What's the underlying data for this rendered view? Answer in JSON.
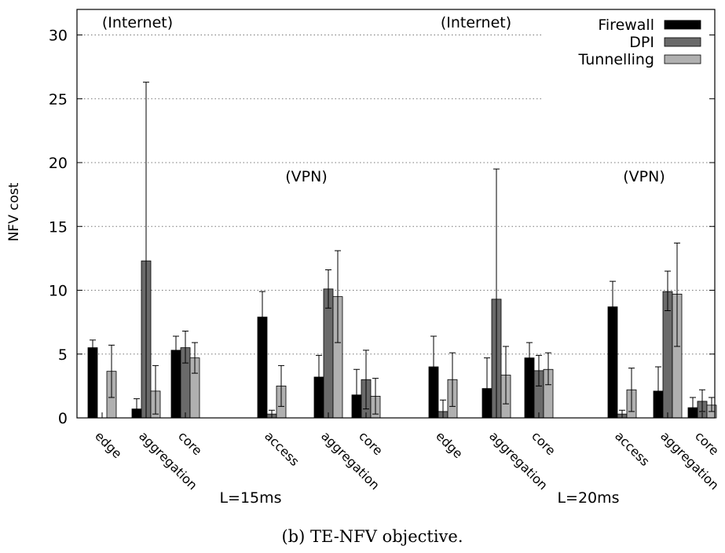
{
  "chart_data": {
    "type": "bar",
    "ylabel": "NFV cost",
    "ylim": [
      0,
      32
    ],
    "yticks": [
      0,
      5,
      10,
      15,
      20,
      25,
      30
    ],
    "grid": "horizontal dotted",
    "legend_position": "top-right",
    "series": [
      {
        "name": "Firewall",
        "color": "#000000"
      },
      {
        "name": "DPI",
        "color": "#6a6a6a"
      },
      {
        "name": "Tunnelling",
        "color": "#b0b0b0"
      }
    ],
    "groups": [
      {
        "panel": "L=15ms",
        "scenario": "(Internet)",
        "category": "edge",
        "values": [
          5.5,
          0,
          3.65
        ],
        "errors": [
          [
            5.0,
            6.1
          ],
          [
            0,
            0
          ],
          [
            1.6,
            5.7
          ]
        ]
      },
      {
        "panel": "L=15ms",
        "scenario": "(Internet)",
        "category": "aggregation",
        "values": [
          0.7,
          12.3,
          2.1
        ],
        "errors": [
          [
            0.1,
            1.5
          ],
          [
            0,
            26.3
          ],
          [
            0.3,
            4.1
          ]
        ]
      },
      {
        "panel": "L=15ms",
        "scenario": "(Internet)",
        "category": "core",
        "values": [
          5.3,
          5.5,
          4.7
        ],
        "errors": [
          [
            4.3,
            6.4
          ],
          [
            4.3,
            6.8
          ],
          [
            3.5,
            5.9
          ]
        ]
      },
      {
        "panel": "L=15ms",
        "scenario": "(VPN)",
        "category": "access",
        "values": [
          7.9,
          0.3,
          2.5
        ],
        "errors": [
          [
            5.9,
            9.9
          ],
          [
            0,
            0.6
          ],
          [
            0.9,
            4.1
          ]
        ]
      },
      {
        "panel": "L=15ms",
        "scenario": "(VPN)",
        "category": "aggregation",
        "values": [
          3.2,
          10.1,
          9.5
        ],
        "errors": [
          [
            1.5,
            4.9
          ],
          [
            8.6,
            11.6
          ],
          [
            5.9,
            13.1
          ]
        ]
      },
      {
        "panel": "L=15ms",
        "scenario": "(VPN)",
        "category": "core",
        "values": [
          1.8,
          3.0,
          1.7
        ],
        "errors": [
          [
            0,
            3.8
          ],
          [
            0.7,
            5.3
          ],
          [
            0.3,
            3.1
          ]
        ]
      },
      {
        "panel": "L=20ms",
        "scenario": "(Internet)",
        "category": "edge",
        "values": [
          4.0,
          0.5,
          3.0
        ],
        "errors": [
          [
            1.7,
            6.4
          ],
          [
            0,
            1.4
          ],
          [
            0.9,
            5.1
          ]
        ]
      },
      {
        "panel": "L=20ms",
        "scenario": "(Internet)",
        "category": "aggregation",
        "values": [
          2.3,
          9.3,
          3.35
        ],
        "errors": [
          [
            0,
            4.7
          ],
          [
            0,
            19.5
          ],
          [
            1.1,
            5.6
          ]
        ]
      },
      {
        "panel": "L=20ms",
        "scenario": "(Internet)",
        "category": "core",
        "values": [
          4.7,
          3.7,
          3.8
        ],
        "errors": [
          [
            3.4,
            5.9
          ],
          [
            2.5,
            4.9
          ],
          [
            2.6,
            5.1
          ]
        ]
      },
      {
        "panel": "L=20ms",
        "scenario": "(VPN)",
        "category": "access",
        "values": [
          8.7,
          0.3,
          2.2
        ],
        "errors": [
          [
            6.7,
            10.7
          ],
          [
            0,
            0.6
          ],
          [
            0.5,
            3.9
          ]
        ]
      },
      {
        "panel": "L=20ms",
        "scenario": "(VPN)",
        "category": "aggregation",
        "values": [
          2.1,
          9.9,
          9.7
        ],
        "errors": [
          [
            0.3,
            4.0
          ],
          [
            8.4,
            11.5
          ],
          [
            5.6,
            13.7
          ]
        ]
      },
      {
        "panel": "L=20ms",
        "scenario": "(VPN)",
        "category": "core",
        "values": [
          0.8,
          1.3,
          1.0
        ],
        "errors": [
          [
            0.2,
            1.6
          ],
          [
            0.5,
            2.2
          ],
          [
            0.5,
            1.6
          ]
        ]
      }
    ],
    "panel_labels": [
      "L=15ms",
      "L=20ms"
    ],
    "scenario_labels": [
      {
        "text": "(Internet)",
        "x_group": 0
      },
      {
        "text": "(VPN)",
        "x_group": 3
      },
      {
        "text": "(Internet)",
        "x_group": 6
      },
      {
        "text": "(VPN)",
        "x_group": 9
      }
    ],
    "caption": "(b) TE-NFV objective."
  }
}
